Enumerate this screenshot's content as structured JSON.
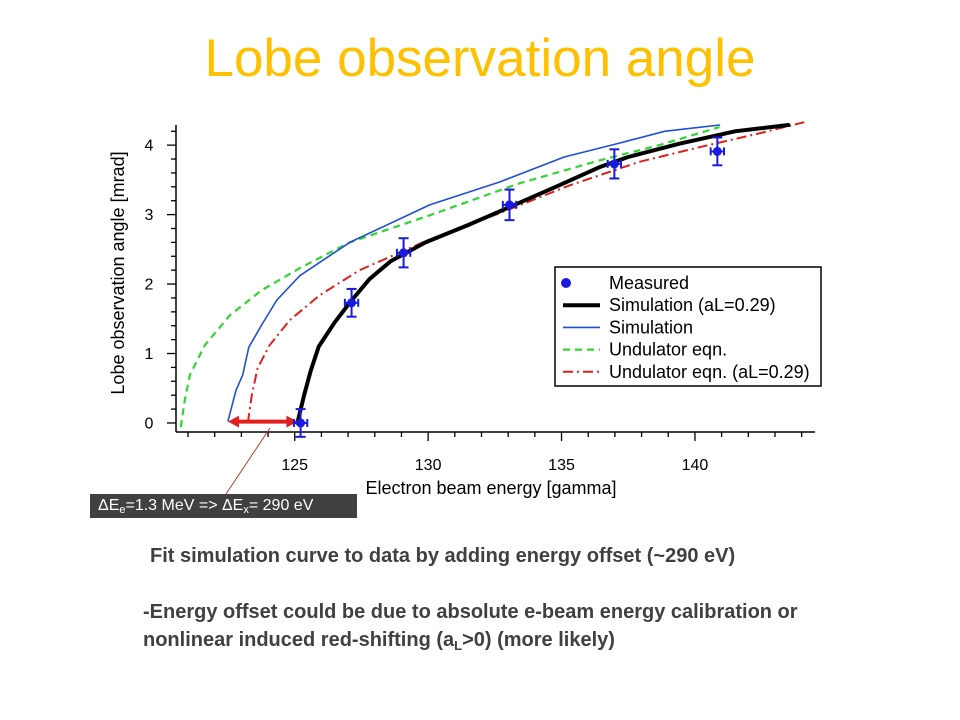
{
  "slide": {
    "title": "Lobe observation angle",
    "title_color": "#FFC000",
    "bullet_main": "Fit simulation curve to data by adding energy offset (~290 eV)",
    "note_line1": "-Energy offset could be due to absolute e-beam energy calibration or",
    "note_line2_pre": "nonlinear induced red-shifting (a",
    "note_line2_sub": "L",
    "note_line2_post": ">0) (more likely)",
    "text_color": "#404040"
  },
  "annotation": {
    "part1": "ΔE",
    "sub1": "e",
    "part2": "=1.3 MeV => ΔE",
    "sub2": "x",
    "part3": "= 290 eV",
    "box_color": "#404040",
    "text_color": "#ffffff"
  },
  "chart_data": {
    "type": "line",
    "xlabel": "Electron beam energy [gamma]",
    "ylabel": "Lobe observation angle [mrad]",
    "xlim": [
      120.55,
      144.5
    ],
    "ylim": [
      -0.13,
      4.29
    ],
    "xticks": [
      125,
      130,
      135,
      140
    ],
    "xtick_labels": [
      "125",
      "130",
      "135",
      "140"
    ],
    "x_minor_step": 1,
    "yticks": [
      0,
      1,
      2,
      3,
      4
    ],
    "ytick_labels": [
      "0",
      "1",
      "2",
      "3",
      "4"
    ],
    "y_minor_step": 0.2,
    "grid": false,
    "legend_position": "center-right",
    "series": [
      {
        "name": "Measured",
        "line_style": "markers",
        "color": "#1a1ae0",
        "x": [
          125.22,
          127.13,
          129.08,
          133.05,
          136.98,
          140.84
        ],
        "y": [
          0.0,
          1.73,
          2.45,
          3.14,
          3.73,
          3.91
        ],
        "yerr": [
          0.2,
          0.2,
          0.21,
          0.22,
          0.21,
          0.2
        ],
        "xerr": [
          0.25,
          0.25,
          0.25,
          0.25,
          0.25,
          0.25
        ]
      },
      {
        "name": "Simulation (aL=0.29)",
        "line_style": "solid-thick",
        "color": "#000000",
        "x": [
          125.1,
          125.35,
          125.6,
          125.9,
          126.5,
          127.1,
          127.8,
          128.6,
          129.9,
          131.5,
          133.0,
          134.9,
          136.4,
          137.5,
          139.4,
          141.5,
          143.5
        ],
        "y": [
          0.0,
          0.4,
          0.75,
          1.1,
          1.45,
          1.75,
          2.07,
          2.33,
          2.6,
          2.85,
          3.1,
          3.42,
          3.68,
          3.83,
          4.02,
          4.2,
          4.29
        ]
      },
      {
        "name": "Simulation",
        "line_style": "solid",
        "color": "#1f4fd8",
        "x": [
          122.5,
          122.8,
          123.05,
          123.28,
          123.76,
          124.33,
          125.19,
          127.06,
          130.06,
          132.68,
          135.1,
          137.17,
          138.86,
          140.92
        ],
        "y": [
          0.03,
          0.47,
          0.69,
          1.09,
          1.41,
          1.77,
          2.12,
          2.6,
          3.14,
          3.47,
          3.83,
          4.03,
          4.2,
          4.29
        ]
      },
      {
        "name": "Undulator eqn.",
        "line_style": "dashed",
        "color": "#2fd62f",
        "x": [
          120.73,
          120.88,
          121.07,
          121.63,
          122.57,
          123.76,
          125.19,
          127.06,
          130.06,
          133.43,
          136.42,
          138.67,
          140.92
        ],
        "y": [
          -0.06,
          0.33,
          0.69,
          1.12,
          1.55,
          1.91,
          2.23,
          2.6,
          2.99,
          3.45,
          3.78,
          4.0,
          4.26
        ]
      },
      {
        "name": "Undulator eqn. (aL=0.29)",
        "line_style": "dash-dot",
        "color": "#e0201f",
        "x": [
          123.24,
          123.39,
          123.61,
          124.06,
          124.81,
          125.94,
          127.43,
          129.98,
          132.68,
          135.3,
          137.92,
          140.17,
          142.42,
          144.1
        ],
        "y": [
          0.0,
          0.4,
          0.79,
          1.12,
          1.48,
          1.84,
          2.2,
          2.63,
          3.02,
          3.42,
          3.76,
          3.97,
          4.17,
          4.33
        ]
      }
    ],
    "offset_arrow": {
      "x_from": 122.5,
      "x_to": 125.1,
      "y": 0.02,
      "color": "#e0201f"
    }
  }
}
